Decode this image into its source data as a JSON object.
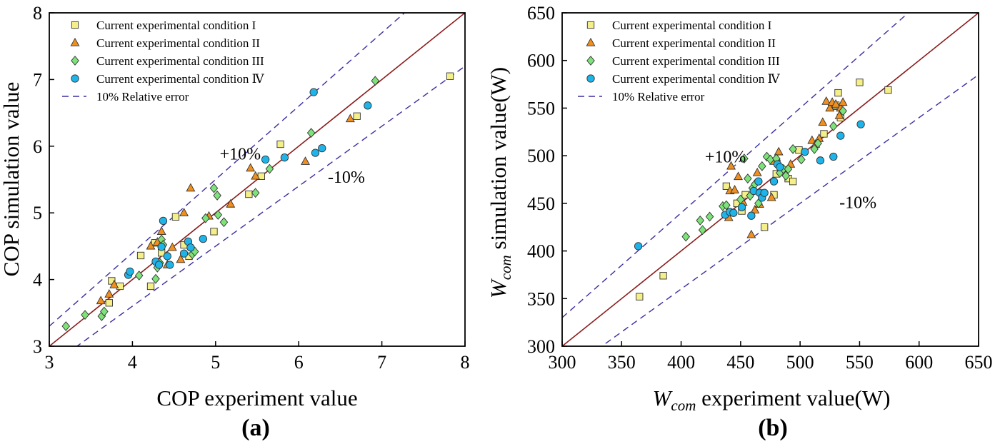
{
  "colors": {
    "condition_I": "#f5ef8a",
    "condition_II": "#ef8f1f",
    "condition_III": "#7ee27a",
    "condition_IV": "#1fb4e9",
    "diagonal": "#8b1a1a",
    "error_band": "#3a2ea0"
  },
  "legend_labels": [
    "Current experimental condition I",
    "Current experimental condition II",
    "Current experimental condition III",
    "Current experimental condition Ⅳ",
    "10% Relative error"
  ],
  "chart_data": [
    {
      "type": "scatter",
      "panel_label": "(a)",
      "xlabel": "COP experiment value",
      "ylabel": "COP simulation value",
      "xlim": [
        3,
        8
      ],
      "ylim": [
        3,
        8
      ],
      "xticks": [
        3,
        4,
        5,
        6,
        7,
        8
      ],
      "yticks": [
        3,
        4,
        5,
        6,
        7,
        8
      ],
      "legend_position": "top-left",
      "annotations": {
        "plus": "+10%",
        "minus": "-10%"
      },
      "plus_annotation_at": [
        5.05,
        5.8
      ],
      "minus_annotation_at": [
        6.35,
        5.45
      ],
      "series": [
        {
          "name": "Current experimental condition I",
          "marker": "square",
          "color_key": "condition_I",
          "points": [
            [
              3.75,
              3.98
            ],
            [
              3.72,
              3.65
            ],
            [
              3.85,
              3.9
            ],
            [
              4.1,
              4.36
            ],
            [
              4.22,
              3.9
            ],
            [
              4.27,
              4.55
            ],
            [
              4.35,
              4.4
            ],
            [
              4.52,
              4.94
            ],
            [
              4.62,
              4.52
            ],
            [
              4.68,
              4.35
            ],
            [
              4.98,
              4.72
            ],
            [
              5.4,
              5.28
            ],
            [
              5.55,
              5.55
            ],
            [
              5.78,
              6.03
            ],
            [
              6.7,
              6.45
            ],
            [
              7.82,
              7.05
            ]
          ]
        },
        {
          "name": "Current experimental condition II",
          "marker": "triangle",
          "color_key": "condition_II",
          "points": [
            [
              3.62,
              3.68
            ],
            [
              3.72,
              3.78
            ],
            [
              3.78,
              3.92
            ],
            [
              4.22,
              4.5
            ],
            [
              4.3,
              4.56
            ],
            [
              4.35,
              4.72
            ],
            [
              4.42,
              4.22
            ],
            [
              4.48,
              4.48
            ],
            [
              4.58,
              4.3
            ],
            [
              4.62,
              5.0
            ],
            [
              4.7,
              5.37
            ],
            [
              4.92,
              4.95
            ],
            [
              5.18,
              5.13
            ],
            [
              5.42,
              5.67
            ],
            [
              5.48,
              5.55
            ],
            [
              6.08,
              5.77
            ],
            [
              6.62,
              6.41
            ]
          ]
        },
        {
          "name": "Current experimental condition III",
          "marker": "diamond",
          "color_key": "condition_III",
          "points": [
            [
              3.2,
              3.3
            ],
            [
              3.43,
              3.47
            ],
            [
              3.63,
              3.45
            ],
            [
              3.66,
              3.52
            ],
            [
              4.08,
              4.06
            ],
            [
              4.28,
              4.01
            ],
            [
              4.3,
              4.18
            ],
            [
              4.33,
              4.25
            ],
            [
              4.35,
              4.6
            ],
            [
              4.37,
              4.52
            ],
            [
              4.72,
              4.38
            ],
            [
              4.75,
              4.42
            ],
            [
              4.88,
              4.92
            ],
            [
              4.98,
              5.37
            ],
            [
              5.02,
              5.26
            ],
            [
              5.03,
              4.97
            ],
            [
              5.1,
              4.86
            ],
            [
              5.48,
              5.3
            ],
            [
              5.65,
              5.66
            ],
            [
              6.15,
              6.2
            ],
            [
              6.92,
              6.98
            ]
          ]
        },
        {
          "name": "Current experimental condition Ⅳ",
          "marker": "circle",
          "color_key": "condition_IV",
          "points": [
            [
              3.95,
              4.07
            ],
            [
              3.97,
              4.12
            ],
            [
              4.28,
              4.27
            ],
            [
              4.32,
              4.22
            ],
            [
              4.35,
              4.49
            ],
            [
              4.37,
              4.88
            ],
            [
              4.42,
              4.35
            ],
            [
              4.45,
              4.22
            ],
            [
              4.62,
              4.39
            ],
            [
              4.67,
              4.57
            ],
            [
              4.7,
              4.48
            ],
            [
              4.85,
              4.61
            ],
            [
              5.6,
              5.8
            ],
            [
              5.83,
              5.83
            ],
            [
              6.18,
              6.81
            ],
            [
              6.2,
              5.9
            ],
            [
              6.28,
              5.97
            ],
            [
              6.83,
              6.61
            ]
          ]
        }
      ]
    },
    {
      "type": "scatter",
      "panel_label": "(b)",
      "xlabel_italic": "W",
      "xlabel_sub": "com",
      "xlabel_rest": " experiment value(W)",
      "ylabel_italic": "W",
      "ylabel_sub": "com",
      "ylabel_rest": " simulation value(W)",
      "xlim": [
        300,
        650
      ],
      "ylim": [
        300,
        650
      ],
      "xticks": [
        300,
        350,
        400,
        450,
        500,
        550,
        600,
        650
      ],
      "yticks": [
        300,
        350,
        400,
        450,
        500,
        550,
        600,
        650
      ],
      "legend_position": "top-left",
      "annotations": {
        "plus": "+10%",
        "minus": "-10%"
      },
      "plus_annotation_at": [
        420,
        493
      ],
      "minus_annotation_at": [
        533,
        445
      ],
      "series": [
        {
          "name": "Current experimental condition I",
          "marker": "square",
          "color_key": "condition_I",
          "points": [
            [
              365,
              352
            ],
            [
              385,
              374
            ],
            [
              438,
              468
            ],
            [
              447,
              450
            ],
            [
              451,
              442
            ],
            [
              454,
              459
            ],
            [
              470,
              425
            ],
            [
              478,
              459
            ],
            [
              480,
              481
            ],
            [
              490,
              476
            ],
            [
              494,
              473
            ],
            [
              499,
              506
            ],
            [
              520,
              523
            ],
            [
              528,
              552
            ],
            [
              530,
              553
            ],
            [
              532,
              566
            ],
            [
              534,
              540
            ],
            [
              550,
              577
            ],
            [
              574,
              569
            ]
          ]
        },
        {
          "name": "Current experimental condition II",
          "marker": "triangle",
          "color_key": "condition_II",
          "points": [
            [
              440,
              435
            ],
            [
              441,
              463
            ],
            [
              442,
              489
            ],
            [
              445,
              464
            ],
            [
              448,
              478
            ],
            [
              452,
              451
            ],
            [
              459,
              417
            ],
            [
              462,
              443
            ],
            [
              464,
              482
            ],
            [
              466,
              449
            ],
            [
              476,
              456
            ],
            [
              478,
              494
            ],
            [
              480,
              498
            ],
            [
              482,
              504
            ],
            [
              492,
              491
            ],
            [
              510,
              516
            ],
            [
              513,
              512
            ],
            [
              516,
              518
            ],
            [
              519,
              535
            ],
            [
              522,
              557
            ],
            [
              525,
              550
            ],
            [
              527,
              556
            ],
            [
              530,
              554
            ],
            [
              533,
              542
            ],
            [
              534,
              550
            ],
            [
              536,
              556
            ]
          ]
        },
        {
          "name": "Current experimental condition III",
          "marker": "diamond",
          "color_key": "condition_III",
          "points": [
            [
              404,
              415
            ],
            [
              416,
              432
            ],
            [
              418,
              422
            ],
            [
              424,
              436
            ],
            [
              435,
              447
            ],
            [
              438,
              448
            ],
            [
              450,
              454
            ],
            [
              453,
              497
            ],
            [
              456,
              476
            ],
            [
              458,
              458
            ],
            [
              460,
              466
            ],
            [
              462,
              470
            ],
            [
              465,
              450
            ],
            [
              468,
              489
            ],
            [
              472,
              499
            ],
            [
              475,
              496
            ],
            [
              480,
              497
            ],
            [
              483,
              482
            ],
            [
              486,
              486
            ],
            [
              488,
              479
            ],
            [
              490,
              486
            ],
            [
              494,
              507
            ],
            [
              501,
              496
            ],
            [
              512,
              507
            ],
            [
              515,
              513
            ],
            [
              528,
              531
            ],
            [
              536,
              547
            ]
          ]
        },
        {
          "name": "Current experimental condition Ⅳ",
          "marker": "circle",
          "color_key": "condition_IV",
          "points": [
            [
              364,
              405
            ],
            [
              437,
              438
            ],
            [
              441,
              441
            ],
            [
              444,
              440
            ],
            [
              451,
              446
            ],
            [
              459,
              437
            ],
            [
              461,
              463
            ],
            [
              465,
              473
            ],
            [
              466,
              461
            ],
            [
              468,
              456
            ],
            [
              470,
              461
            ],
            [
              478,
              473
            ],
            [
              481,
              491
            ],
            [
              483,
              488
            ],
            [
              504,
              504
            ],
            [
              517,
              495
            ],
            [
              528,
              499
            ],
            [
              534,
              521
            ],
            [
              551,
              533
            ]
          ]
        }
      ]
    }
  ]
}
